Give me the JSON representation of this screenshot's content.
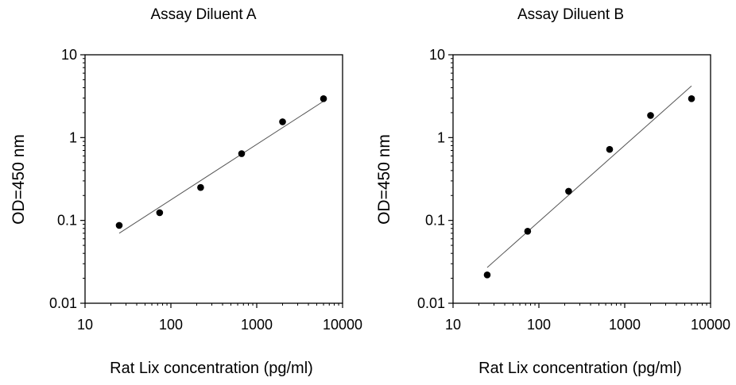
{
  "chart_data": [
    {
      "type": "scatter",
      "title": "Assay Diluent A",
      "xlabel": "Rat Lix concentration (pg/ml)",
      "ylabel": "OD=450 nm",
      "x_scale": "log",
      "y_scale": "log",
      "xlim": [
        10,
        10000
      ],
      "ylim": [
        0.01,
        10
      ],
      "x_ticks": [
        "10",
        "100",
        "1000",
        "10000"
      ],
      "y_ticks": [
        "0.01",
        "0.1",
        "1",
        "10"
      ],
      "grid": false,
      "legend": "none",
      "series": [
        {
          "x": [
            25,
            74,
            222,
            667,
            2000,
            6000
          ],
          "y": [
            0.087,
            0.124,
            0.25,
            0.64,
            1.55,
            2.95
          ]
        }
      ],
      "trendline": {
        "x": [
          25,
          6000
        ],
        "y": [
          0.07,
          2.75
        ]
      },
      "marker_color": "#000000",
      "line_color": "#555555"
    },
    {
      "type": "scatter",
      "title": "Assay Diluent B",
      "xlabel": "Rat Lix concentration (pg/ml)",
      "ylabel": "OD=450 nm",
      "x_scale": "log",
      "y_scale": "log",
      "xlim": [
        10,
        10000
      ],
      "ylim": [
        0.01,
        10
      ],
      "x_ticks": [
        "10",
        "100",
        "1000",
        "10000"
      ],
      "y_ticks": [
        "0.01",
        "0.1",
        "1",
        "10"
      ],
      "grid": false,
      "legend": "none",
      "series": [
        {
          "x": [
            25,
            74,
            222,
            667,
            2000,
            6000
          ],
          "y": [
            0.022,
            0.074,
            0.225,
            0.72,
            1.85,
            2.95
          ]
        }
      ],
      "trendline": {
        "x": [
          25,
          6000
        ],
        "y": [
          0.027,
          4.2
        ]
      },
      "marker_color": "#000000",
      "line_color": "#555555"
    }
  ]
}
